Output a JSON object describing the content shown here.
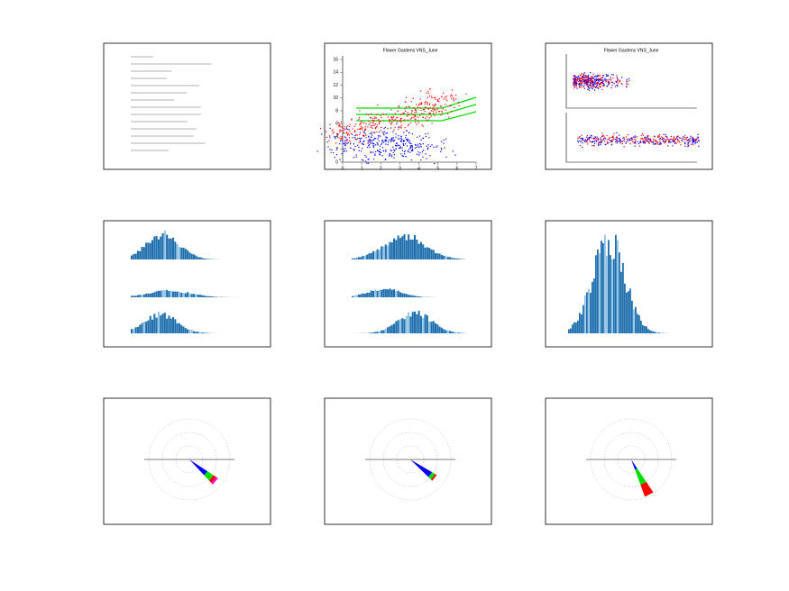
{
  "scatter_panel": {
    "title": "Flower Gardens VNS_June",
    "yticks": [
      0,
      2,
      4,
      6,
      8,
      10,
      12,
      14,
      16
    ],
    "xticks": [
      0,
      1,
      2,
      3,
      4,
      5,
      6,
      7
    ]
  },
  "twin_scatter_panel": {
    "title": "Flower Gardens VNS_June"
  }
}
